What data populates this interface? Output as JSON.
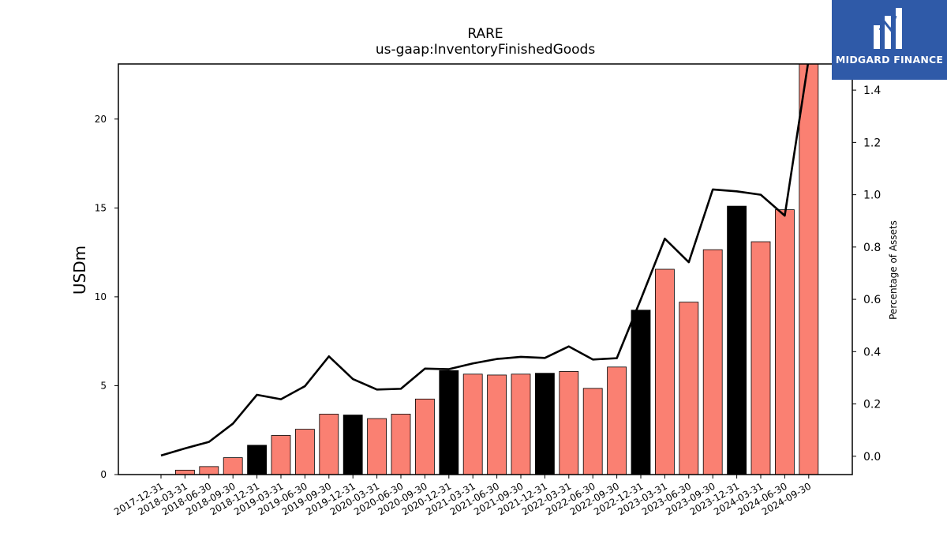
{
  "chart_data": {
    "type": "bar",
    "title": "RARE",
    "subtitle": "us-gaap:InventoryFinishedGoods",
    "ylabel": "USDm",
    "y2label": "Percentage of Assets",
    "ylim": [
      0,
      23.1
    ],
    "y2lim": [
      -0.07,
      1.5
    ],
    "yticks": [
      0,
      5,
      10,
      15,
      20
    ],
    "y2ticks": [
      0.0,
      0.2,
      0.4,
      0.6,
      0.8,
      1.0,
      1.2,
      1.4
    ],
    "categories": [
      "2017-12-31",
      "2018-03-31",
      "2018-06-30",
      "2018-09-30",
      "2018-12-31",
      "2019-03-31",
      "2019-06-30",
      "2019-09-30",
      "2019-12-31",
      "2020-03-31",
      "2020-06-30",
      "2020-09-30",
      "2020-12-31",
      "2021-03-31",
      "2021-06-30",
      "2021-09-30",
      "2021-12-31",
      "2022-03-31",
      "2022-06-30",
      "2022-09-30",
      "2022-12-31",
      "2023-03-31",
      "2023-06-30",
      "2023-09-30",
      "2023-12-31",
      "2024-03-31",
      "2024-06-30",
      "2024-09-30"
    ],
    "series": [
      {
        "type": "bar",
        "values": [
          0,
          0.25,
          0.45,
          0.95,
          1.65,
          2.2,
          2.55,
          3.4,
          3.35,
          3.15,
          3.4,
          4.25,
          5.85,
          5.65,
          5.6,
          5.65,
          5.7,
          5.8,
          4.85,
          6.05,
          9.25,
          11.55,
          9.7,
          12.65,
          15.1,
          13.1,
          14.9,
          23.1
        ],
        "highlight": [
          false,
          false,
          false,
          false,
          true,
          false,
          false,
          false,
          true,
          false,
          false,
          false,
          true,
          false,
          false,
          false,
          true,
          false,
          false,
          false,
          true,
          false,
          false,
          false,
          true,
          false,
          false,
          false
        ]
      },
      {
        "type": "line",
        "axis": "right",
        "values": [
          0.003,
          0.03,
          0.055,
          0.125,
          0.235,
          0.218,
          0.268,
          0.382,
          0.295,
          0.255,
          0.258,
          0.335,
          0.333,
          0.355,
          0.372,
          0.38,
          0.376,
          0.42,
          0.37,
          0.375,
          0.6,
          0.832,
          0.742,
          1.02,
          1.013,
          1.0,
          0.92,
          1.52
        ]
      }
    ],
    "colors": {
      "bar": "#fa8072",
      "bar_highlight": "#000000",
      "line": "#000000"
    },
    "grid": false
  },
  "logo": {
    "text": "MIDGARD FINANCE",
    "background": "#2f5aa8"
  }
}
